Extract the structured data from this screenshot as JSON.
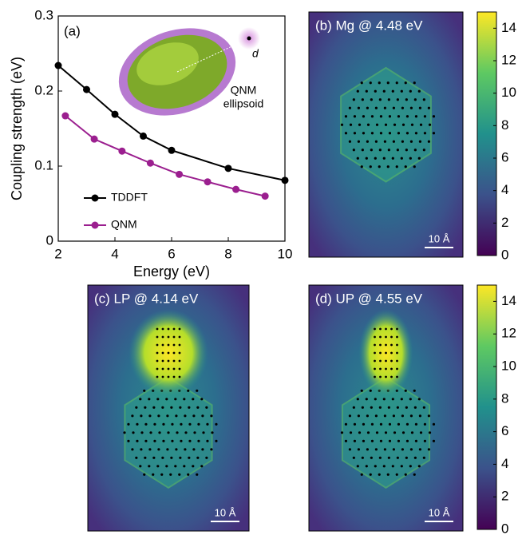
{
  "chart_data": [
    {
      "type": "line",
      "panel_label": "(a)",
      "xlabel": "Energy (eV)",
      "ylabel": "Coupling strength (eV)",
      "xlim": [
        2,
        10
      ],
      "xticks": [
        2,
        4,
        6,
        8,
        10
      ],
      "ylim": [
        0,
        0.3
      ],
      "yticks": [
        0,
        0.1,
        0.2,
        0.3
      ],
      "annotations": [
        "QNM",
        "ellipsoid",
        "d"
      ],
      "series": [
        {
          "name": "TDDFT",
          "color": "#000000",
          "x": [
            2,
            3,
            4,
            5,
            6,
            8,
            10
          ],
          "values": [
            0.234,
            0.202,
            0.169,
            0.14,
            0.121,
            0.097,
            0.081
          ]
        },
        {
          "name": "QNM",
          "color": "#9b1f8f",
          "x": [
            2.25,
            3.27,
            4.25,
            5.25,
            6.27,
            7.27,
            8.27,
            9.3
          ],
          "values": [
            0.167,
            0.136,
            0.12,
            0.104,
            0.089,
            0.079,
            0.069,
            0.06
          ]
        }
      ]
    },
    {
      "type": "heatmap",
      "title": "(b) Mg @ 4.48 eV",
      "scale_bar": "10 Å",
      "colormap": "viridis",
      "colorbar": {
        "zlim": [
          0,
          15
        ],
        "ticks": [
          0,
          2,
          4,
          6,
          8,
          10,
          12,
          14
        ]
      }
    },
    {
      "type": "heatmap",
      "title": "(c) LP @ 4.14 eV",
      "scale_bar": "10 Å",
      "colormap": "viridis"
    },
    {
      "type": "heatmap",
      "title": "(d) UP @ 4.55 eV",
      "scale_bar": "10 Å",
      "colormap": "viridis",
      "colorbar": {
        "zlim": [
          0,
          15
        ],
        "ticks": [
          0,
          2,
          4,
          6,
          8,
          10,
          12,
          14
        ]
      }
    }
  ]
}
